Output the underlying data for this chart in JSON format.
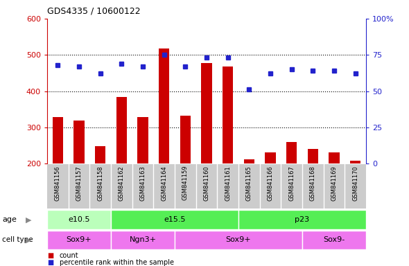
{
  "title": "GDS4335 / 10600122",
  "samples": [
    "GSM841156",
    "GSM841157",
    "GSM841158",
    "GSM841162",
    "GSM841163",
    "GSM841164",
    "GSM841159",
    "GSM841160",
    "GSM841161",
    "GSM841165",
    "GSM841166",
    "GSM841167",
    "GSM841168",
    "GSM841169",
    "GSM841170"
  ],
  "counts": [
    328,
    318,
    248,
    383,
    328,
    518,
    333,
    478,
    468,
    212,
    230,
    260,
    240,
    230,
    208
  ],
  "percentiles": [
    68,
    67,
    62,
    69,
    67,
    75,
    67,
    73,
    73,
    51,
    62,
    65,
    64,
    64,
    62
  ],
  "ylim_left": [
    200,
    600
  ],
  "ylim_right": [
    0,
    100
  ],
  "yticks_left": [
    200,
    300,
    400,
    500,
    600
  ],
  "yticks_right": [
    0,
    25,
    50,
    75,
    100
  ],
  "bar_color": "#cc0000",
  "dot_color": "#2222cc",
  "grid_dotted_levels": [
    300,
    400,
    500
  ],
  "age_groups": [
    {
      "label": "e10.5",
      "start": 0,
      "end": 3,
      "color": "#bbffbb"
    },
    {
      "label": "e15.5",
      "start": 3,
      "end": 9,
      "color": "#55ee55"
    },
    {
      "label": "p23",
      "start": 9,
      "end": 15,
      "color": "#55ee55"
    }
  ],
  "cell_groups": [
    {
      "label": "Sox9+",
      "start": 0,
      "end": 3,
      "color": "#ee77ee"
    },
    {
      "label": "Ngn3+",
      "start": 3,
      "end": 6,
      "color": "#ee77ee"
    },
    {
      "label": "Sox9+",
      "start": 6,
      "end": 12,
      "color": "#ee77ee"
    },
    {
      "label": "Sox9-",
      "start": 12,
      "end": 15,
      "color": "#ee77ee"
    }
  ]
}
